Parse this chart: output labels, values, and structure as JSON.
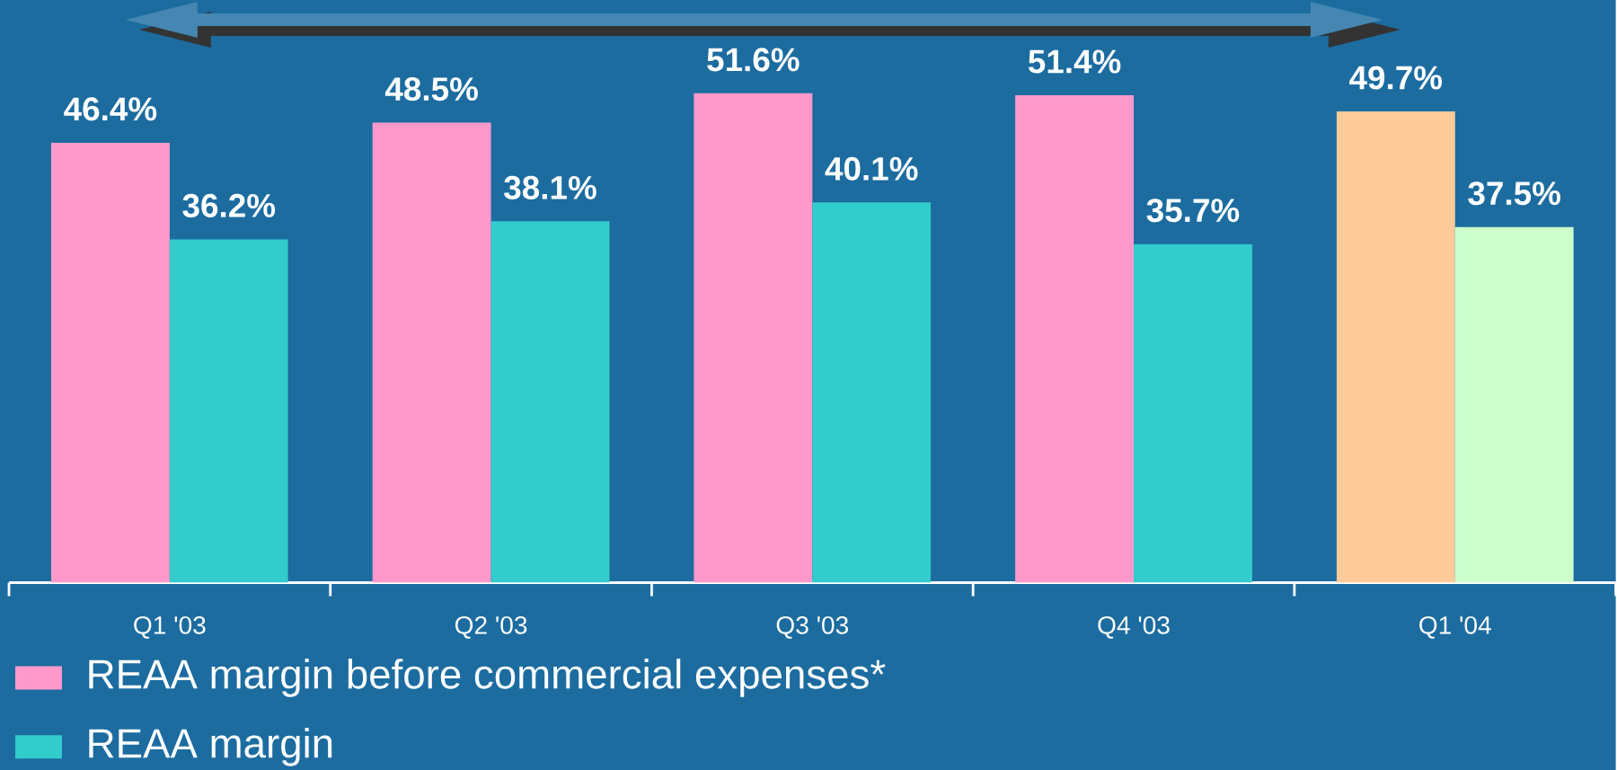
{
  "chart_data": {
    "type": "bar",
    "categories": [
      "Q1 '03",
      "Q2 '03",
      "Q3 '03",
      "Q4 '03",
      "Q1 '04"
    ],
    "series": [
      {
        "name": "REAA margin before commercial expenses*",
        "color": "#ff99cc",
        "colors": [
          "#ff99cc",
          "#ff99cc",
          "#ff99cc",
          "#ff99cc",
          "#ffcc99"
        ],
        "values": [
          46.4,
          48.5,
          51.6,
          51.4,
          49.7
        ],
        "value_labels": [
          "46.4%",
          "48.5%",
          "51.6%",
          "51.4%",
          "49.7%"
        ]
      },
      {
        "name": "REAA margin",
        "color": "#33cccc",
        "colors": [
          "#33cccc",
          "#33cccc",
          "#33cccc",
          "#33cccc",
          "#ccffcc"
        ],
        "values": [
          36.2,
          38.1,
          40.1,
          35.7,
          37.5
        ],
        "value_labels": [
          "36.2%",
          "38.1%",
          "40.1%",
          "35.7%",
          "37.5%"
        ]
      }
    ],
    "legend": "bottom",
    "tick_labels": "x",
    "grid": false
  }
}
